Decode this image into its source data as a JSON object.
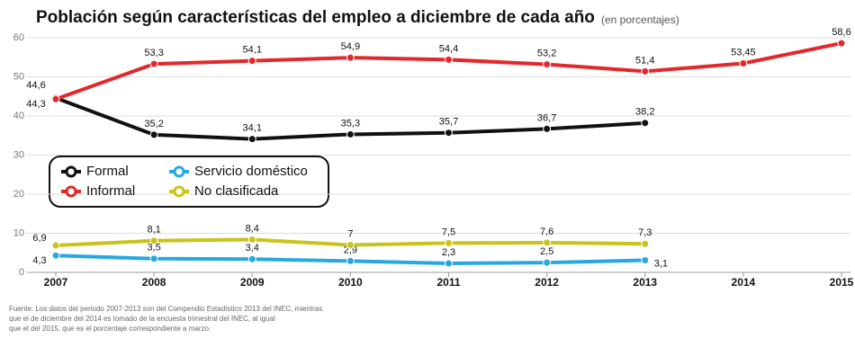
{
  "chart_data": {
    "type": "line",
    "title": "Población según características del empleo a diciembre de cada año",
    "subtitle": "(en porcentajes)",
    "categories": [
      "2007",
      "2008",
      "2009",
      "2010",
      "2011",
      "2012",
      "2013",
      "2014",
      "2015"
    ],
    "series": [
      {
        "name": "Formal",
        "color": "#111111",
        "values": [
          44.6,
          35.2,
          34.1,
          35.3,
          35.7,
          36.7,
          38.2,
          null,
          null
        ],
        "value_labels": [
          "44,6",
          "35,2",
          "34,1",
          "35,3",
          "35,7",
          "36,7",
          "38,2",
          null,
          null
        ]
      },
      {
        "name": "Informal",
        "color": "#e3282c",
        "values": [
          44.3,
          53.3,
          54.1,
          54.9,
          54.4,
          53.2,
          51.4,
          53.45,
          58.6
        ],
        "value_labels": [
          "44,3",
          "53,3",
          "54,1",
          "54,9",
          "54,4",
          "53,2",
          "51,4",
          "53,45",
          "58,6"
        ]
      },
      {
        "name": "Servicio doméstico",
        "color": "#27a8e0",
        "values": [
          4.3,
          3.5,
          3.4,
          2.9,
          2.3,
          2.5,
          3.1,
          null,
          null
        ],
        "value_labels": [
          "4,3",
          "3,5",
          "3,4",
          "2,9",
          "2,3",
          "2,5",
          "3,1",
          null,
          null
        ]
      },
      {
        "name": "No clasificada",
        "color": "#c9c31c",
        "values": [
          6.9,
          8.1,
          8.4,
          7,
          7.5,
          7.6,
          7.3,
          null,
          null
        ],
        "value_labels": [
          "6,9",
          "8,1",
          "8,4",
          "7",
          "7,5",
          "7,6",
          "7,3",
          null,
          null
        ]
      }
    ],
    "ylim": [
      0,
      60
    ],
    "yticks": [
      0,
      10,
      20,
      30,
      40,
      50,
      60
    ],
    "grid": true,
    "footnote": [
      "Fuente:  Los datos del periodo 2007-2013 son del Compendio Estadístico 2013 del INEC, mientras",
      "que el de diciembre del 2014 es tomado de la encuesta trimestral del INEC, al igual",
      "que el del 2015, que es el porcentaje correspondiente a marzo."
    ]
  }
}
